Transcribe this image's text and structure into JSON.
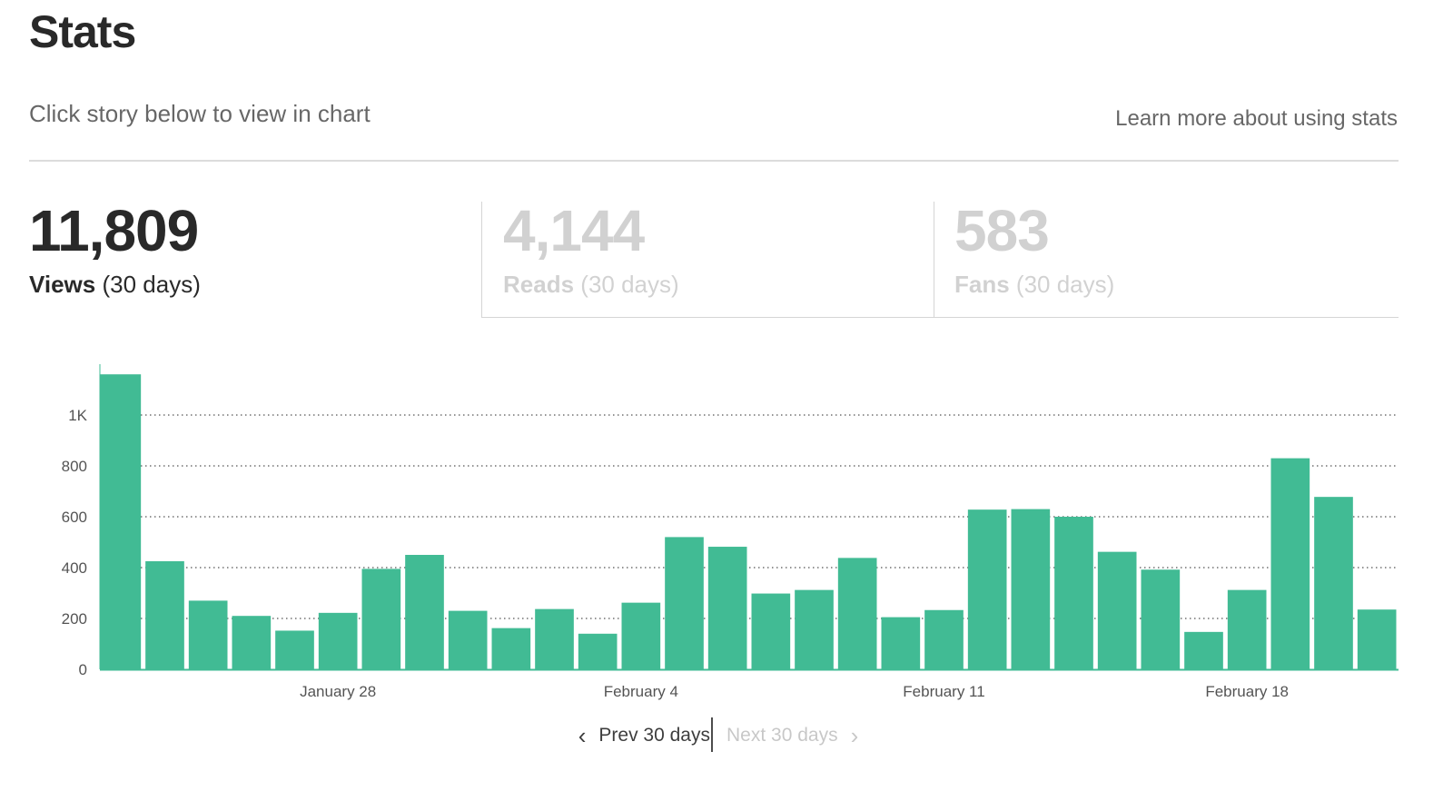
{
  "header": {
    "title": "Stats",
    "subtitle": "Click story below to view in chart",
    "learn_more": "Learn more about using stats"
  },
  "metrics": {
    "views": {
      "value": "11,809",
      "label": "Views",
      "period": "(30 days)"
    },
    "reads": {
      "value": "4,144",
      "label": "Reads",
      "period": "(30 days)"
    },
    "fans": {
      "value": "583",
      "label": "Fans",
      "period": "(30 days)"
    }
  },
  "pager": {
    "prev_label": "Prev 30 days",
    "next_label": "Next 30 days",
    "prev_icon": "chevron-left-icon",
    "next_icon": "chevron-right-icon"
  },
  "colors": {
    "bar": "#41bb94",
    "axis": "#41bb94",
    "grid": "#555555",
    "muted_text": "#d0d0d0"
  },
  "chart_data": {
    "type": "bar",
    "series": [
      {
        "values": [
          1160,
          425,
          270,
          210,
          152,
          222,
          395,
          450,
          230,
          162,
          237,
          140,
          262,
          520,
          482,
          298,
          312,
          438,
          205,
          233,
          628,
          630,
          600,
          462,
          392,
          147,
          312,
          830,
          678,
          235
        ]
      }
    ],
    "yticks": [
      0,
      200,
      400,
      600,
      800,
      1000
    ],
    "ytick_labels": [
      "0",
      "200",
      "400",
      "600",
      "800",
      "1K"
    ],
    "ylim": [
      0,
      1200
    ],
    "xtick_labels": [
      {
        "bar_index": 5,
        "label": "January 28"
      },
      {
        "bar_index": 12,
        "label": "February 4"
      },
      {
        "bar_index": 19,
        "label": "February 11"
      },
      {
        "bar_index": 26,
        "label": "February 18"
      }
    ],
    "grid": true,
    "title": "",
    "xlabel": "",
    "ylabel": ""
  }
}
